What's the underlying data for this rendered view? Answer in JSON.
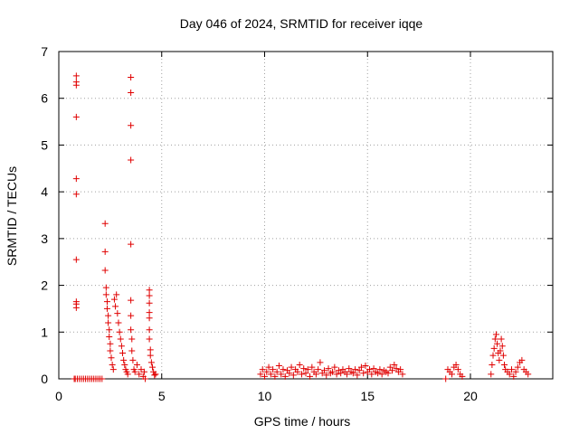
{
  "chart_data": {
    "type": "scatter",
    "title": "Day 046 of 2024, SRMTID for receiver iqqe",
    "xlabel": "GPS time / hours",
    "ylabel": "SRMTID / TECUs",
    "xlim": [
      0,
      24
    ],
    "ylim": [
      0,
      7
    ],
    "xticks": [
      "0",
      "5",
      "10",
      "15",
      "20"
    ],
    "yticks": [
      "0",
      "1",
      "2",
      "3",
      "4",
      "5",
      "6",
      "7"
    ],
    "grid": true,
    "marker": "+",
    "color": "#e00000",
    "series": [
      {
        "name": "SRMTID",
        "points": [
          [
            0.85,
            6.48
          ],
          [
            0.85,
            6.35
          ],
          [
            0.85,
            6.28
          ],
          [
            0.85,
            5.6
          ],
          [
            0.85,
            4.28
          ],
          [
            0.85,
            3.95
          ],
          [
            0.85,
            2.55
          ],
          [
            0.85,
            1.65
          ],
          [
            0.85,
            1.6
          ],
          [
            0.85,
            1.52
          ],
          [
            0.75,
            0.0
          ],
          [
            0.8,
            0.0
          ],
          [
            0.9,
            0.0
          ],
          [
            1.0,
            0.0
          ],
          [
            1.1,
            0.0
          ],
          [
            1.2,
            0.0
          ],
          [
            1.3,
            0.0
          ],
          [
            1.4,
            0.0
          ],
          [
            1.5,
            0.0
          ],
          [
            1.6,
            0.0
          ],
          [
            1.7,
            0.0
          ],
          [
            1.8,
            0.0
          ],
          [
            1.9,
            0.0
          ],
          [
            2.0,
            0.0
          ],
          [
            2.1,
            0.0
          ],
          [
            2.25,
            3.32
          ],
          [
            2.25,
            2.72
          ],
          [
            2.25,
            2.32
          ],
          [
            2.3,
            1.95
          ],
          [
            2.3,
            1.8
          ],
          [
            2.35,
            1.65
          ],
          [
            2.35,
            1.5
          ],
          [
            2.4,
            1.35
          ],
          [
            2.4,
            1.2
          ],
          [
            2.45,
            1.05
          ],
          [
            2.45,
            0.9
          ],
          [
            2.5,
            0.75
          ],
          [
            2.5,
            0.6
          ],
          [
            2.55,
            0.45
          ],
          [
            2.6,
            0.3
          ],
          [
            2.65,
            0.2
          ],
          [
            2.7,
            1.7
          ],
          [
            2.75,
            1.55
          ],
          [
            2.8,
            1.8
          ],
          [
            2.85,
            1.4
          ],
          [
            2.9,
            1.2
          ],
          [
            2.95,
            1.0
          ],
          [
            3.0,
            0.85
          ],
          [
            3.05,
            0.7
          ],
          [
            3.1,
            0.55
          ],
          [
            3.15,
            0.4
          ],
          [
            3.2,
            0.3
          ],
          [
            3.25,
            0.2
          ],
          [
            3.3,
            0.15
          ],
          [
            3.35,
            0.1
          ],
          [
            3.5,
            6.45
          ],
          [
            3.5,
            6.12
          ],
          [
            3.5,
            5.42
          ],
          [
            3.5,
            4.68
          ],
          [
            3.5,
            2.88
          ],
          [
            3.5,
            1.68
          ],
          [
            3.5,
            1.35
          ],
          [
            3.5,
            1.05
          ],
          [
            3.55,
            0.85
          ],
          [
            3.55,
            0.6
          ],
          [
            3.6,
            0.4
          ],
          [
            3.65,
            0.2
          ],
          [
            3.7,
            0.15
          ],
          [
            3.8,
            0.3
          ],
          [
            3.9,
            0.1
          ],
          [
            4.0,
            0.2
          ],
          [
            4.1,
            0.05
          ],
          [
            4.15,
            0.15
          ],
          [
            4.2,
            0.0
          ],
          [
            4.4,
            1.9
          ],
          [
            4.4,
            1.78
          ],
          [
            4.4,
            1.62
          ],
          [
            4.4,
            1.42
          ],
          [
            4.4,
            1.3
          ],
          [
            4.4,
            1.05
          ],
          [
            4.4,
            0.85
          ],
          [
            4.45,
            0.62
          ],
          [
            4.45,
            0.5
          ],
          [
            4.5,
            0.35
          ],
          [
            4.55,
            0.25
          ],
          [
            4.6,
            0.15
          ],
          [
            4.65,
            0.08
          ],
          [
            4.7,
            0.1
          ],
          [
            9.8,
            0.1
          ],
          [
            9.9,
            0.2
          ],
          [
            10.0,
            0.05
          ],
          [
            10.1,
            0.15
          ],
          [
            10.2,
            0.25
          ],
          [
            10.3,
            0.1
          ],
          [
            10.4,
            0.2
          ],
          [
            10.5,
            0.05
          ],
          [
            10.6,
            0.15
          ],
          [
            10.7,
            0.28
          ],
          [
            10.8,
            0.1
          ],
          [
            10.9,
            0.2
          ],
          [
            11.0,
            0.05
          ],
          [
            11.1,
            0.18
          ],
          [
            11.2,
            0.12
          ],
          [
            11.3,
            0.25
          ],
          [
            11.4,
            0.08
          ],
          [
            11.5,
            0.2
          ],
          [
            11.6,
            0.15
          ],
          [
            11.7,
            0.3
          ],
          [
            11.8,
            0.1
          ],
          [
            11.9,
            0.22
          ],
          [
            12.0,
            0.12
          ],
          [
            12.1,
            0.2
          ],
          [
            12.2,
            0.05
          ],
          [
            12.3,
            0.25
          ],
          [
            12.4,
            0.15
          ],
          [
            12.5,
            0.1
          ],
          [
            12.6,
            0.2
          ],
          [
            12.7,
            0.35
          ],
          [
            12.8,
            0.12
          ],
          [
            12.9,
            0.18
          ],
          [
            13.0,
            0.08
          ],
          [
            13.1,
            0.22
          ],
          [
            13.2,
            0.12
          ],
          [
            13.3,
            0.15
          ],
          [
            13.4,
            0.25
          ],
          [
            13.5,
            0.1
          ],
          [
            13.6,
            0.18
          ],
          [
            13.7,
            0.12
          ],
          [
            13.8,
            0.2
          ],
          [
            13.9,
            0.15
          ],
          [
            14.0,
            0.1
          ],
          [
            14.1,
            0.22
          ],
          [
            14.2,
            0.15
          ],
          [
            14.3,
            0.12
          ],
          [
            14.4,
            0.2
          ],
          [
            14.5,
            0.08
          ],
          [
            14.6,
            0.18
          ],
          [
            14.7,
            0.25
          ],
          [
            14.8,
            0.12
          ],
          [
            14.9,
            0.28
          ],
          [
            15.0,
            0.15
          ],
          [
            15.1,
            0.2
          ],
          [
            15.2,
            0.1
          ],
          [
            15.3,
            0.22
          ],
          [
            15.4,
            0.15
          ],
          [
            15.5,
            0.12
          ],
          [
            15.6,
            0.2
          ],
          [
            15.7,
            0.1
          ],
          [
            15.8,
            0.18
          ],
          [
            15.9,
            0.15
          ],
          [
            16.0,
            0.12
          ],
          [
            16.1,
            0.25
          ],
          [
            16.2,
            0.18
          ],
          [
            16.3,
            0.3
          ],
          [
            16.4,
            0.22
          ],
          [
            16.5,
            0.15
          ],
          [
            16.6,
            0.2
          ],
          [
            16.7,
            0.1
          ],
          [
            18.8,
            0.0
          ],
          [
            18.9,
            0.2
          ],
          [
            19.0,
            0.15
          ],
          [
            19.1,
            0.1
          ],
          [
            19.2,
            0.25
          ],
          [
            19.3,
            0.3
          ],
          [
            19.4,
            0.2
          ],
          [
            19.5,
            0.1
          ],
          [
            19.6,
            0.05
          ],
          [
            21.0,
            0.1
          ],
          [
            21.05,
            0.3
          ],
          [
            21.1,
            0.5
          ],
          [
            21.15,
            0.65
          ],
          [
            21.2,
            0.85
          ],
          [
            21.25,
            0.95
          ],
          [
            21.3,
            0.75
          ],
          [
            21.35,
            0.55
          ],
          [
            21.4,
            0.4
          ],
          [
            21.45,
            0.6
          ],
          [
            21.5,
            0.85
          ],
          [
            21.55,
            0.7
          ],
          [
            21.6,
            0.5
          ],
          [
            21.65,
            0.3
          ],
          [
            21.7,
            0.2
          ],
          [
            21.8,
            0.15
          ],
          [
            21.9,
            0.1
          ],
          [
            22.0,
            0.2
          ],
          [
            22.1,
            0.05
          ],
          [
            22.2,
            0.15
          ],
          [
            22.3,
            0.25
          ],
          [
            22.4,
            0.35
          ],
          [
            22.5,
            0.4
          ],
          [
            22.6,
            0.2
          ],
          [
            22.7,
            0.15
          ],
          [
            22.8,
            0.1
          ]
        ]
      }
    ]
  }
}
